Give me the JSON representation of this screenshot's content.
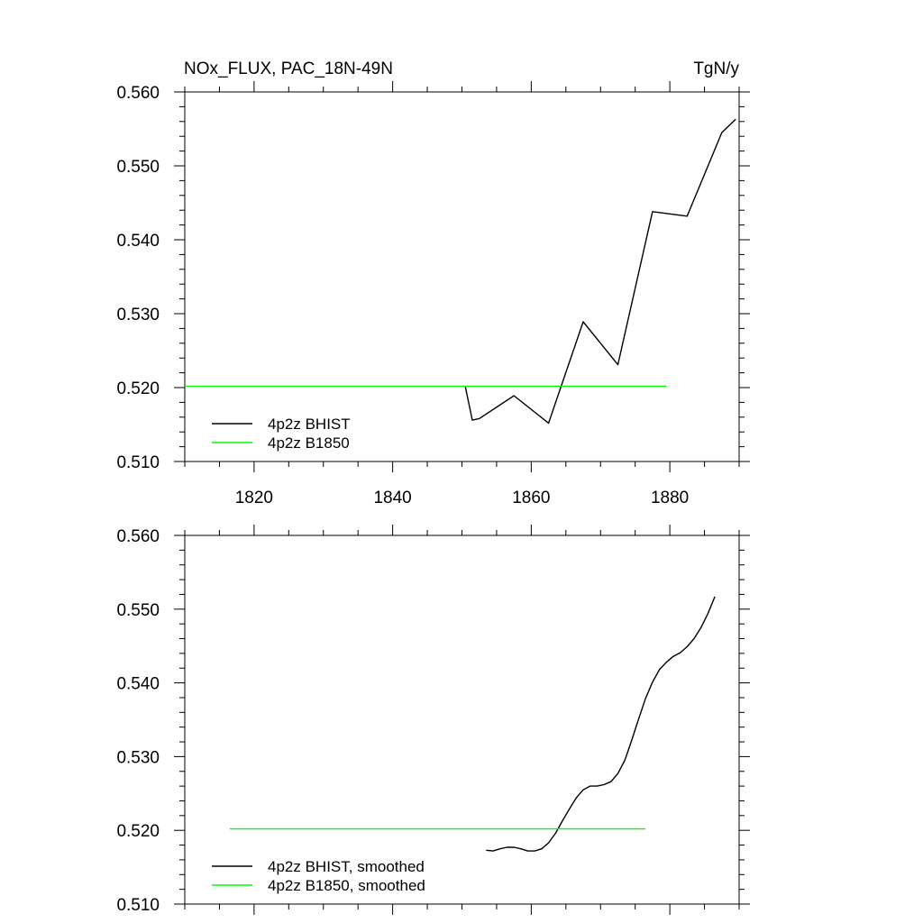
{
  "header": {
    "title": "NOx_FLUX, PAC_18N-49N",
    "units": "TgN/y"
  },
  "colors": {
    "bhist": "#000000",
    "b1850": "#00ff00"
  },
  "chart_data": [
    {
      "type": "line",
      "title": "NOx_FLUX, PAC_18N-49N",
      "units": "TgN/y",
      "xlim": [
        1810,
        1890
      ],
      "ylim": [
        0.51,
        0.56
      ],
      "xticks": [
        1820,
        1840,
        1860,
        1880
      ],
      "xtick_labels": [
        "1820",
        "1840",
        "1860",
        "1880"
      ],
      "yticks": [
        0.51,
        0.52,
        0.53,
        0.54,
        0.55,
        0.56
      ],
      "ytick_labels": [
        "0.510",
        "0.520",
        "0.530",
        "0.540",
        "0.550",
        "0.560"
      ],
      "grid": false,
      "legend": "bottom-left",
      "series": [
        {
          "name": "4p2z BHIST",
          "color": "#000000",
          "x": [
            1850.5,
            1851.5,
            1852.5,
            1857.5,
            1862.5,
            1867.5,
            1872.5,
            1877.5,
            1882.5,
            1887.5,
            1889.5
          ],
          "y": [
            0.5201,
            0.5156,
            0.5158,
            0.5189,
            0.5152,
            0.5289,
            0.5231,
            0.5438,
            0.5432,
            0.5545,
            0.5563
          ]
        },
        {
          "name": "4p2z B1850",
          "color": "#00ff00",
          "x": [
            1810,
            1879.5
          ],
          "y": [
            0.5202,
            0.5202
          ]
        }
      ]
    },
    {
      "type": "line",
      "xlim": [
        1810,
        1890
      ],
      "ylim": [
        0.51,
        0.56
      ],
      "xticks": [
        1820,
        1840,
        1860,
        1880
      ],
      "yticks": [
        0.51,
        0.52,
        0.53,
        0.54,
        0.55,
        0.56
      ],
      "ytick_labels": [
        "0.510",
        "0.520",
        "0.530",
        "0.540",
        "0.550",
        "0.560"
      ],
      "grid": false,
      "legend": "bottom-left",
      "series": [
        {
          "name": "4p2z BHIST, smoothed",
          "color": "#000000",
          "x": [
            1853.5,
            1854.5,
            1855.5,
            1856.5,
            1857.5,
            1858.5,
            1859.5,
            1860.5,
            1861.5,
            1862.5,
            1863.5,
            1864.5,
            1865.5,
            1866.5,
            1867.5,
            1868.5,
            1869.5,
            1870.5,
            1871.5,
            1872.5,
            1873.5,
            1874.5,
            1875.5,
            1876.5,
            1877.5,
            1878.5,
            1879.5,
            1880.5,
            1881.5,
            1882.5,
            1883.5,
            1884.5,
            1885.5,
            1886.5
          ],
          "y": [
            0.5173,
            0.5172,
            0.5175,
            0.5177,
            0.5177,
            0.5175,
            0.5172,
            0.5172,
            0.5175,
            0.5183,
            0.5196,
            0.5213,
            0.5229,
            0.5244,
            0.5255,
            0.526,
            0.526,
            0.5262,
            0.5266,
            0.5277,
            0.5295,
            0.5322,
            0.5351,
            0.5379,
            0.5401,
            0.5418,
            0.5428,
            0.5436,
            0.5441,
            0.5449,
            0.546,
            0.5475,
            0.5494,
            0.5517
          ]
        },
        {
          "name": "4p2z B1850, smoothed",
          "color": "#00ff00",
          "x": [
            1816.5,
            1876.5
          ],
          "y": [
            0.5202,
            0.5202
          ]
        }
      ]
    }
  ]
}
